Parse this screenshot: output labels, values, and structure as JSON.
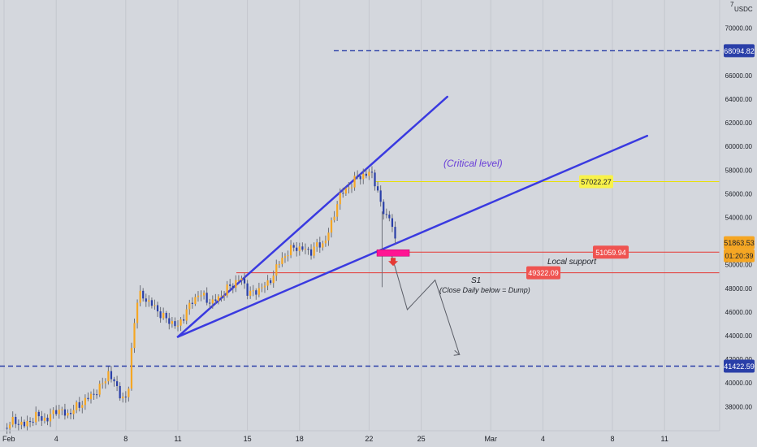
{
  "chart_data": {
    "type": "candlestick",
    "currency": "USDC",
    "currency_mark": "7",
    "y_ticks": [
      38000,
      40000,
      42000,
      44000,
      46000,
      48000,
      50000,
      52000,
      54000,
      56000,
      58000,
      60000,
      62000,
      64000,
      66000,
      68000,
      70000
    ],
    "y_tick_labels": [
      "38000.00",
      "40000.00",
      "42000.00",
      "44000.00",
      "46000.00",
      "48000.00",
      "50000.00",
      "52000.00",
      "54000.00",
      "56000.00",
      "58000.00",
      "60000.00",
      "62000.00",
      "64000.00",
      "66000.00",
      "68000.00",
      "70000.00"
    ],
    "x_ticks": [
      {
        "day": 1,
        "label": "Feb"
      },
      {
        "day": 4,
        "label": "4"
      },
      {
        "day": 8,
        "label": "8"
      },
      {
        "day": 11,
        "label": "11"
      },
      {
        "day": 15,
        "label": "15"
      },
      {
        "day": 18,
        "label": "18"
      },
      {
        "day": 22,
        "label": "22"
      },
      {
        "day": 25,
        "label": "25"
      },
      {
        "day": 29,
        "label": "Mar"
      },
      {
        "day": 32,
        "label": "4"
      },
      {
        "day": 36,
        "label": "8"
      },
      {
        "day": 39,
        "label": "11"
      }
    ],
    "candle_anchors": [
      [
        1.0,
        36200
      ],
      [
        1.6,
        36800
      ],
      [
        2.2,
        36400
      ],
      [
        2.8,
        37200
      ],
      [
        3.5,
        36900
      ],
      [
        4.0,
        37800
      ],
      [
        4.6,
        37300
      ],
      [
        5.3,
        38100
      ],
      [
        6.0,
        38900
      ],
      [
        6.6,
        39700
      ],
      [
        7.0,
        40900
      ],
      [
        7.4,
        39800
      ],
      [
        7.8,
        38800
      ],
      [
        8.1,
        38400
      ],
      [
        8.35,
        43200
      ],
      [
        8.6,
        46600
      ],
      [
        8.9,
        47600
      ],
      [
        9.3,
        46800
      ],
      [
        9.7,
        46400
      ],
      [
        10.1,
        45600
      ],
      [
        10.6,
        45200
      ],
      [
        11.0,
        44700
      ],
      [
        11.4,
        45900
      ],
      [
        11.8,
        46800
      ],
      [
        12.2,
        47600
      ],
      [
        12.6,
        47100
      ],
      [
        13.0,
        46800
      ],
      [
        13.4,
        47300
      ],
      [
        13.8,
        47900
      ],
      [
        14.2,
        48400
      ],
      [
        14.6,
        48900
      ],
      [
        15.0,
        47800
      ],
      [
        15.4,
        47500
      ],
      [
        15.8,
        48200
      ],
      [
        16.2,
        48300
      ],
      [
        16.6,
        49600
      ],
      [
        17.0,
        50500
      ],
      [
        17.4,
        51200
      ],
      [
        17.8,
        51500
      ],
      [
        18.2,
        51300
      ],
      [
        18.6,
        51100
      ],
      [
        19.0,
        51600
      ],
      [
        19.4,
        51800
      ],
      [
        19.8,
        53200
      ],
      [
        20.2,
        55500
      ],
      [
        20.6,
        56300
      ],
      [
        21.0,
        56800
      ],
      [
        21.4,
        57600
      ],
      [
        21.8,
        57500
      ],
      [
        22.1,
        57900
      ],
      [
        22.4,
        56800
      ],
      [
        22.7,
        54800
      ],
      [
        23.0,
        54200
      ],
      [
        23.25,
        53900
      ],
      [
        23.5,
        51863
      ]
    ],
    "current_price": 51863.53,
    "current_price_label": "51863.53",
    "countdown_label": "01:20:39",
    "levels": [
      {
        "value": 68094.82,
        "label": "68094.82",
        "style": "dashed",
        "color": "#2a3fa8"
      },
      {
        "value": 57022.27,
        "label": "57022.27",
        "style": "solid",
        "color": "#e8e000"
      },
      {
        "value": 51059.94,
        "label": "51059.94",
        "style": "solid",
        "color": "#e53935"
      },
      {
        "value": 49322.09,
        "label": "49322.09",
        "style": "solid",
        "color": "#e53935"
      },
      {
        "value": 41422.59,
        "label": "41422.59",
        "style": "dashed",
        "color": "#2a3fa8"
      }
    ],
    "annotations": {
      "critical_level": "(Critical level)",
      "local_support": "Local support",
      "s1": "S1",
      "close_daily": "(Close Daily below = Dump)"
    },
    "trendlines": [
      {
        "from": [
          11.0,
          43900
        ],
        "to": [
          26.5,
          64200
        ]
      },
      {
        "from": [
          11.0,
          43900
        ],
        "to": [
          38.0,
          60900
        ]
      }
    ],
    "projection_path": [
      [
        23.3,
        50800
      ],
      [
        24.2,
        46200
      ],
      [
        25.8,
        48700
      ],
      [
        27.2,
        42400
      ]
    ],
    "colors": {
      "background": "#d4d7dd",
      "up": "#f5a623",
      "down": "#2a3fa8",
      "wick": "#6c6f78",
      "grid": "#c4c7ce",
      "trendline": "#3a3ae0",
      "annotation": "#6a3fd8",
      "signal_box": "#ff1493",
      "signal_arrow": "#e53935"
    }
  }
}
